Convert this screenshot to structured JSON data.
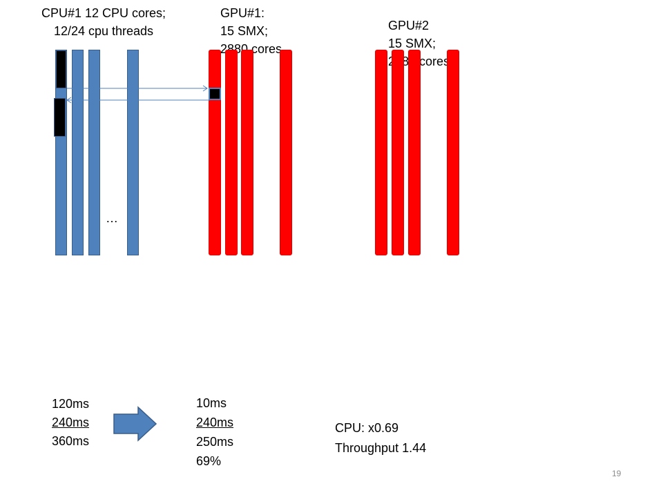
{
  "cpu": {
    "title_line1": "CPU#1 12 CPU cores;",
    "title_line2": "12/24 cpu threads",
    "ellipsis": "…"
  },
  "gpu1": {
    "title_line1": "GPU#1:",
    "title_line2": "15 SMX;",
    "title_line3": "2880 cores"
  },
  "gpu2": {
    "title_line1": "GPU#2",
    "title_line2": "15 SMX;",
    "title_line3": "2880 cores"
  },
  "timing_before": {
    "line1": "120ms",
    "line2": "240ms",
    "line3": "360ms"
  },
  "timing_after": {
    "line1": "10ms",
    "line2": "240ms",
    "line3": "250ms",
    "line4": "69%"
  },
  "summary": {
    "line1": "CPU: x0.69",
    "line2": "Throughput 1.44"
  },
  "slide_number": "19",
  "colors": {
    "cpu_core": "#4f81bd",
    "gpu_smx": "#ff0000",
    "arrow": "#4f81bd",
    "busy_block": "#000000"
  }
}
